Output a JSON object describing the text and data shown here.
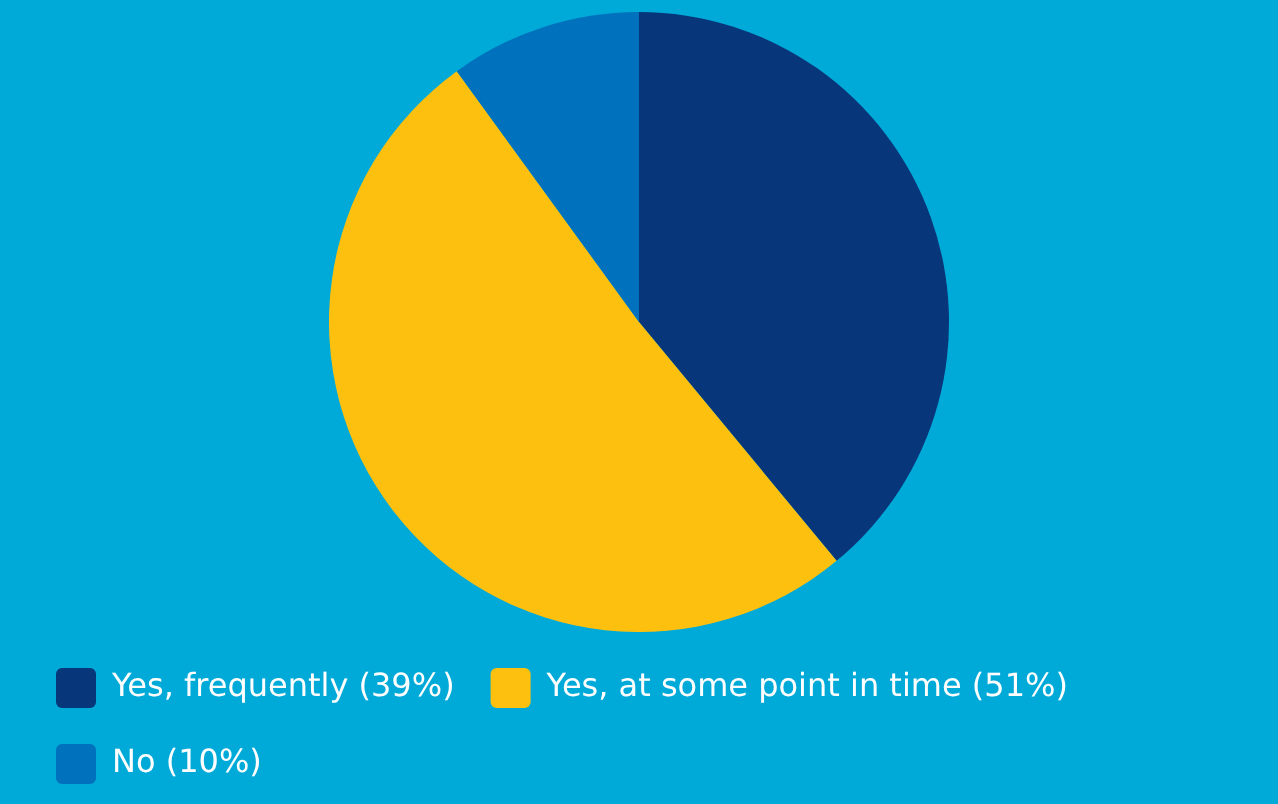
{
  "chart_data": {
    "type": "pie",
    "categories": [
      "Yes, frequently (39%)",
      "Yes, at some point in time (51%)",
      "No (10%)"
    ],
    "values": [
      39,
      51,
      10
    ],
    "colors": [
      "#08367a",
      "#fdc00f",
      "#0071bc"
    ],
    "legend": "bottom left"
  }
}
